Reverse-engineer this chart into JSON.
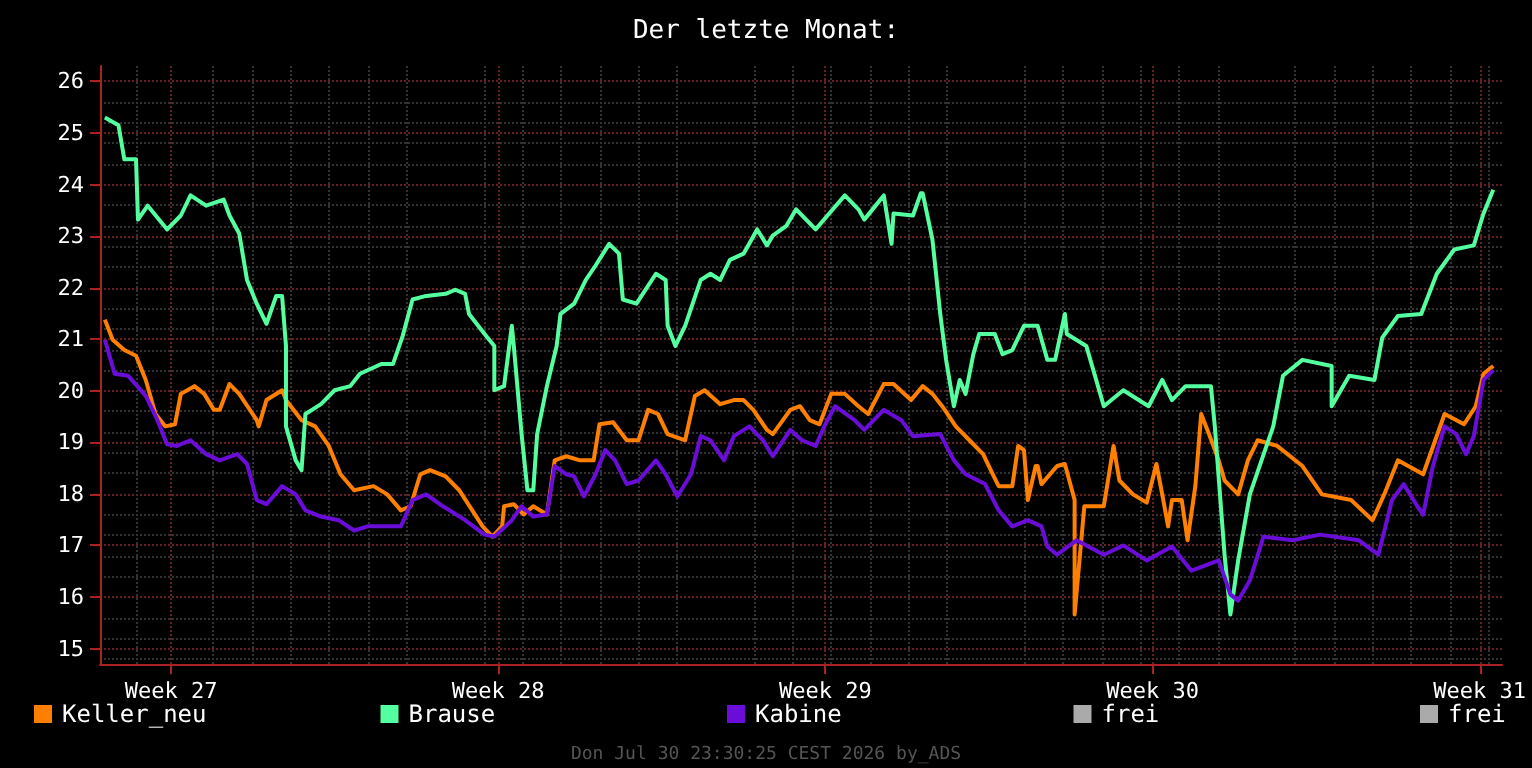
{
  "chart_data": {
    "type": "line",
    "title": "Der letzte Monat:",
    "xlim": [
      "2026-06-30T23:30",
      "2026-07-30T23:30"
    ],
    "xticks": [
      {
        "value": "2026-07-02T12:00",
        "label": "Week 27"
      },
      {
        "value": "2026-07-09T12:00",
        "label": "Week 28"
      },
      {
        "value": "2026-07-16T12:00",
        "label": "Week 29"
      },
      {
        "value": "2026-07-23T12:00",
        "label": "Week 30"
      },
      {
        "value": "2026-07-30T12:00",
        "label": "Week 31"
      }
    ],
    "ylim": [
      14.7,
      26.3
    ],
    "yticks": [
      15,
      16,
      17,
      18,
      19,
      20,
      21,
      22,
      23,
      24,
      25,
      26
    ],
    "grid": true,
    "legend": "bottom",
    "marker": "none",
    "annotations": [
      "Don Jul 30 23:30:25 CEST 2026 by_ADS"
    ],
    "series": [
      {
        "name": "Keller_neu",
        "color": "#ff7f00",
        "x": [
          "2026-07-01T02:00",
          "2026-07-01T06:00",
          "2026-07-01T12:00",
          "2026-07-01T18:00",
          "2026-07-01T23:00",
          "2026-07-02T04:00",
          "2026-07-02T09:00",
          "2026-07-02T14:00",
          "2026-07-02T17:00",
          "2026-07-03T00:00",
          "2026-07-03T05:00",
          "2026-07-03T10:00",
          "2026-07-03T13:00",
          "2026-07-03T18:00",
          "2026-07-03T23:00",
          "2026-07-04T08:00",
          "2026-07-04T09:00",
          "2026-07-04T13:00",
          "2026-07-04T21:00",
          "2026-07-04T23:00",
          "2026-07-05T07:00",
          "2026-07-05T14:00",
          "2026-07-05T21:00",
          "2026-07-06T03:00",
          "2026-07-06T10:00",
          "2026-07-06T20:00",
          "2026-07-07T03:00",
          "2026-07-07T10:00",
          "2026-07-07T15:00",
          "2026-07-07T20:00",
          "2026-07-08T01:00",
          "2026-07-08T09:00",
          "2026-07-08T16:00",
          "2026-07-09T04:00",
          "2026-07-09T09:00",
          "2026-07-09T14:00",
          "2026-07-09T15:00",
          "2026-07-09T20:00",
          "2026-07-10T01:00",
          "2026-07-10T06:00",
          "2026-07-10T13:00",
          "2026-07-10T17:00",
          "2026-07-10T23:00",
          "2026-07-11T06:00",
          "2026-07-11T13:00",
          "2026-07-11T16:00",
          "2026-07-11T23:00",
          "2026-07-12T06:00",
          "2026-07-12T12:00",
          "2026-07-12T17:00",
          "2026-07-12T22:00",
          "2026-07-13T03:00",
          "2026-07-13T12:00",
          "2026-07-13T17:00",
          "2026-07-13T22:00",
          "2026-07-14T06:00",
          "2026-07-14T13:00",
          "2026-07-14T18:00",
          "2026-07-14T23:00",
          "2026-07-15T06:00",
          "2026-07-15T09:00",
          "2026-07-15T18:00",
          "2026-07-15T23:00",
          "2026-07-16T04:00",
          "2026-07-16T09:00",
          "2026-07-16T15:00",
          "2026-07-16T22:00",
          "2026-07-17T05:00",
          "2026-07-17T10:00",
          "2026-07-17T18:00",
          "2026-07-17T23:00",
          "2026-07-18T08:00",
          "2026-07-18T14:00",
          "2026-07-18T19:00",
          "2026-07-19T00:00",
          "2026-07-19T07:00",
          "2026-07-19T14:00",
          "2026-07-19T21:00",
          "2026-07-20T02:00",
          "2026-07-20T05:00",
          "2026-07-20T12:00",
          "2026-07-20T15:00",
          "2026-07-20T18:00",
          "2026-07-20T20:00",
          "2026-07-21T00:00",
          "2026-07-21T01:00",
          "2026-07-21T03:00",
          "2026-07-21T11:00",
          "2026-07-21T15:00",
          "2026-07-21T20:00",
          "2026-07-21T20:00",
          "2026-07-22T01:00",
          "2026-07-22T11:00",
          "2026-07-22T16:00",
          "2026-07-22T19:00",
          "2026-07-23T02:00",
          "2026-07-23T09:00",
          "2026-07-23T14:00",
          "2026-07-23T17:00",
          "2026-07-23T20:00",
          "2026-07-23T22:00",
          "2026-07-24T03:00",
          "2026-07-24T06:00",
          "2026-07-24T10:00",
          "2026-07-24T13:00",
          "2026-07-24T17:00",
          "2026-07-24T22:00",
          "2026-07-25T01:00",
          "2026-07-25T08:00",
          "2026-07-25T13:00",
          "2026-07-25T18:00",
          "2026-07-26T04:00",
          "2026-07-26T17:00",
          "2026-07-27T03:00",
          "2026-07-27T18:00",
          "2026-07-28T05:00",
          "2026-07-28T11:00",
          "2026-07-28T18:00",
          "2026-07-29T07:00",
          "2026-07-29T18:00",
          "2026-07-30T04:00",
          "2026-07-30T10:00",
          "2026-07-30T14:00",
          "2026-07-30T19:00"
        ],
        "values": [
          21.38,
          20.99,
          20.79,
          20.68,
          20.21,
          19.55,
          19.31,
          19.35,
          19.94,
          20.09,
          19.94,
          19.63,
          19.63,
          20.13,
          19.94,
          19.43,
          19.31,
          19.82,
          20.01,
          19.82,
          19.43,
          19.31,
          18.93,
          18.38,
          18.07,
          18.15,
          17.99,
          17.68,
          17.76,
          18.38,
          18.46,
          18.34,
          18.07,
          17.37,
          17.17,
          17.37,
          17.76,
          17.8,
          17.6,
          17.76,
          17.6,
          18.65,
          18.73,
          18.65,
          18.65,
          19.35,
          19.39,
          19.04,
          19.04,
          19.63,
          19.55,
          19.16,
          19.04,
          19.9,
          20.01,
          19.74,
          19.82,
          19.82,
          19.63,
          19.24,
          19.16,
          19.63,
          19.7,
          19.43,
          19.35,
          19.94,
          19.94,
          19.7,
          19.55,
          20.13,
          20.13,
          19.82,
          20.09,
          19.94,
          19.7,
          19.31,
          19.04,
          18.77,
          18.38,
          18.15,
          18.15,
          18.93,
          18.85,
          17.88,
          18.54,
          18.54,
          18.19,
          18.54,
          18.58,
          17.88,
          15.66,
          17.76,
          17.76,
          18.93,
          18.26,
          17.99,
          17.83,
          18.58,
          17.99,
          17.37,
          17.88,
          17.88,
          17.1,
          18.15,
          19.55,
          19.16,
          18.65,
          18.26,
          17.99,
          18.65,
          19.04,
          18.93,
          18.54,
          17.99,
          17.88,
          17.49,
          17.99,
          18.65,
          18.38,
          19.55,
          19.35,
          19.7,
          20.33,
          20.48
        ]
      },
      {
        "name": "Brause",
        "color": "#54ff9f",
        "x": [
          "2026-07-01T02:00",
          "2026-07-01T09:00",
          "2026-07-01T12:00",
          "2026-07-01T18:00",
          "2026-07-01T19:00",
          "2026-07-02T00:00",
          "2026-07-02T10:00",
          "2026-07-02T17:00",
          "2026-07-02T22:00",
          "2026-07-03T06:00",
          "2026-07-03T15:00",
          "2026-07-03T18:00",
          "2026-07-03T23:00",
          "2026-07-04T03:00",
          "2026-07-04T08:00",
          "2026-07-04T13:00",
          "2026-07-04T18:00",
          "2026-07-04T21:00",
          "2026-07-04T23:00",
          "2026-07-04T23:00",
          "2026-07-05T04:00",
          "2026-07-05T07:00",
          "2026-07-05T09:00",
          "2026-07-05T17:00",
          "2026-07-06T00:00",
          "2026-07-06T08:00",
          "2026-07-06T13:00",
          "2026-07-07T00:00",
          "2026-07-07T06:00",
          "2026-07-07T11:00",
          "2026-07-07T16:00",
          "2026-07-07T23:00",
          "2026-07-08T09:00",
          "2026-07-08T14:00",
          "2026-07-08T19:00",
          "2026-07-08T21:00",
          "2026-07-09T05:00",
          "2026-07-09T10:00",
          "2026-07-09T10:00",
          "2026-07-09T15:00",
          "2026-07-09T19:00",
          "2026-07-09T20:00",
          "2026-07-10T00:00",
          "2026-07-10T03:00",
          "2026-07-10T06:00",
          "2026-07-10T08:00",
          "2026-07-10T13:00",
          "2026-07-10T18:00",
          "2026-07-10T20:00",
          "2026-07-11T03:00",
          "2026-07-11T09:00",
          "2026-07-11T14:00",
          "2026-07-11T21:00",
          "2026-07-12T02:00",
          "2026-07-12T04:00",
          "2026-07-12T11:00",
          "2026-07-12T21:00",
          "2026-07-13T02:00",
          "2026-07-13T03:00",
          "2026-07-13T07:00",
          "2026-07-13T12:00",
          "2026-07-13T20:00",
          "2026-07-14T01:00",
          "2026-07-14T06:00",
          "2026-07-14T11:00",
          "2026-07-14T18:00",
          "2026-07-15T01:00",
          "2026-07-15T06:00",
          "2026-07-15T09:00",
          "2026-07-15T16:00",
          "2026-07-15T21:00",
          "2026-07-16T07:00",
          "2026-07-16T14:00",
          "2026-07-16T22:00",
          "2026-07-17T05:00",
          "2026-07-17T08:00",
          "2026-07-17T18:00",
          "2026-07-17T22:00",
          "2026-07-17T23:00",
          "2026-07-18T09:00",
          "2026-07-18T13:00",
          "2026-07-18T14:00",
          "2026-07-18T19:00",
          "2026-07-18T23:00",
          "2026-07-19T02:00",
          "2026-07-19T06:00",
          "2026-07-19T09:00",
          "2026-07-19T12:00",
          "2026-07-19T16:00",
          "2026-07-19T19:00",
          "2026-07-20T03:00",
          "2026-07-20T07:00",
          "2026-07-20T12:00",
          "2026-07-20T18:00",
          "2026-07-21T01:00",
          "2026-07-21T06:00",
          "2026-07-21T10:00",
          "2026-07-21T15:00",
          "2026-07-21T16:00",
          "2026-07-22T02:00",
          "2026-07-22T11:00",
          "2026-07-22T21:00",
          "2026-07-23T10:00",
          "2026-07-23T17:00",
          "2026-07-23T22:00",
          "2026-07-24T05:00",
          "2026-07-24T18:00",
          "2026-07-24T20:00",
          "2026-07-25T01:00",
          "2026-07-25T04:00",
          "2026-07-25T08:00",
          "2026-07-25T14:00",
          "2026-07-26T02:00",
          "2026-07-26T07:00",
          "2026-07-26T17:00",
          "2026-07-27T08:00",
          "2026-07-27T08:00",
          "2026-07-27T17:00",
          "2026-07-28T06:00",
          "2026-07-28T10:00",
          "2026-07-28T18:00",
          "2026-07-29T06:00",
          "2026-07-29T14:00",
          "2026-07-29T23:00",
          "2026-07-30T09:00",
          "2026-07-30T14:00",
          "2026-07-30T19:00"
        ],
        "values": [
          25.3,
          25.15,
          24.49,
          24.49,
          23.32,
          23.59,
          23.13,
          23.4,
          23.79,
          23.59,
          23.71,
          23.4,
          23.05,
          22.15,
          21.69,
          21.3,
          21.84,
          21.84,
          20.87,
          19.31,
          18.65,
          18.46,
          19.55,
          19.74,
          20.01,
          20.09,
          20.33,
          20.52,
          20.52,
          21.07,
          21.77,
          21.84,
          21.88,
          21.96,
          21.88,
          21.49,
          21.1,
          20.87,
          20.01,
          20.09,
          21.26,
          20.87,
          19.16,
          18.07,
          18.07,
          19.16,
          20.09,
          20.87,
          21.49,
          21.69,
          22.15,
          22.43,
          22.85,
          22.66,
          21.77,
          21.69,
          22.27,
          22.15,
          21.26,
          20.87,
          21.26,
          22.15,
          22.27,
          22.15,
          22.54,
          22.66,
          23.13,
          22.82,
          23.01,
          23.2,
          23.52,
          23.13,
          23.44,
          23.79,
          23.52,
          23.32,
          23.79,
          22.85,
          23.44,
          23.4,
          23.83,
          23.83,
          22.93,
          21.49,
          20.6,
          19.7,
          20.21,
          19.94,
          20.71,
          21.1,
          21.1,
          20.71,
          20.79,
          21.26,
          21.26,
          20.6,
          20.6,
          21.49,
          21.1,
          20.87,
          19.7,
          20.01,
          19.7,
          20.21,
          19.82,
          20.09,
          20.09,
          19.31,
          16.82,
          15.66,
          16.71,
          17.99,
          19.31,
          20.29,
          20.6,
          20.48,
          19.7,
          20.29,
          20.21,
          21.03,
          21.45,
          21.49,
          22.27,
          22.74,
          22.82,
          23.44,
          23.9
        ]
      },
      {
        "name": "Kabine",
        "color": "#6a0dd8",
        "x": [
          "2026-07-01T02:00",
          "2026-07-01T07:00",
          "2026-07-01T14:00",
          "2026-07-01T23:00",
          "2026-07-02T05:00",
          "2026-07-02T10:00",
          "2026-07-02T15:00",
          "2026-07-02T22:00",
          "2026-07-03T06:00",
          "2026-07-03T13:00",
          "2026-07-03T22:00",
          "2026-07-04T03:00",
          "2026-07-04T08:00",
          "2026-07-04T13:00",
          "2026-07-04T21:00",
          "2026-07-05T04:00",
          "2026-07-05T09:00",
          "2026-07-05T17:00",
          "2026-07-06T02:00",
          "2026-07-06T10:00",
          "2026-07-06T17:00",
          "2026-07-07T00:00",
          "2026-07-07T10:00",
          "2026-07-07T16:00",
          "2026-07-07T23:00",
          "2026-07-08T06:00",
          "2026-07-08T19:00",
          "2026-07-09T05:00",
          "2026-07-09T10:00",
          "2026-07-09T19:00",
          "2026-07-10T00:00",
          "2026-07-10T06:00",
          "2026-07-10T13:00",
          "2026-07-10T17:00",
          "2026-07-10T23:00",
          "2026-07-11T03:00",
          "2026-07-11T08:00",
          "2026-07-11T14:00",
          "2026-07-11T19:00",
          "2026-07-12T00:00",
          "2026-07-12T06:00",
          "2026-07-12T12:00",
          "2026-07-12T21:00",
          "2026-07-13T02:00",
          "2026-07-13T08:00",
          "2026-07-13T15:00",
          "2026-07-13T20:00",
          "2026-07-14T01:00",
          "2026-07-14T08:00",
          "2026-07-14T13:00",
          "2026-07-14T21:00",
          "2026-07-15T04:00",
          "2026-07-15T09:00",
          "2026-07-15T18:00",
          "2026-07-16T00:00",
          "2026-07-16T07:00",
          "2026-07-16T12:00",
          "2026-07-16T17:00",
          "2026-07-17T03:00",
          "2026-07-17T08:00",
          "2026-07-17T18:00",
          "2026-07-18T03:00",
          "2026-07-18T09:00",
          "2026-07-18T23:00",
          "2026-07-19T06:00",
          "2026-07-19T12:00",
          "2026-07-19T22:00",
          "2026-07-20T05:00",
          "2026-07-20T12:00",
          "2026-07-20T20:00",
          "2026-07-21T03:00",
          "2026-07-21T06:00",
          "2026-07-21T11:00",
          "2026-07-21T21:00",
          "2026-07-22T11:00",
          "2026-07-22T21:00",
          "2026-07-23T09:00",
          "2026-07-23T22:00",
          "2026-07-24T08:00",
          "2026-07-24T22:00",
          "2026-07-25T04:00",
          "2026-07-25T08:00",
          "2026-07-25T14:00",
          "2026-07-25T21:00",
          "2026-07-26T12:00",
          "2026-07-27T02:00",
          "2026-07-27T22:00",
          "2026-07-28T08:00",
          "2026-07-28T15:00",
          "2026-07-28T21:00",
          "2026-07-29T04:00",
          "2026-07-29T07:00",
          "2026-07-29T12:00",
          "2026-07-29T18:00",
          "2026-07-30T00:00",
          "2026-07-30T05:00",
          "2026-07-30T09:00",
          "2026-07-30T14:00",
          "2026-07-30T19:00"
        ],
        "values": [
          20.99,
          20.33,
          20.29,
          19.9,
          19.43,
          18.96,
          18.93,
          19.04,
          18.77,
          18.65,
          18.77,
          18.58,
          17.88,
          17.8,
          18.15,
          17.99,
          17.68,
          17.56,
          17.49,
          17.29,
          17.37,
          17.37,
          17.37,
          17.88,
          17.99,
          17.8,
          17.49,
          17.21,
          17.17,
          17.49,
          17.76,
          17.56,
          17.6,
          18.54,
          18.38,
          18.34,
          17.95,
          18.38,
          18.85,
          18.65,
          18.19,
          18.26,
          18.65,
          18.38,
          17.95,
          18.38,
          19.12,
          19.04,
          18.65,
          19.12,
          19.31,
          19.04,
          18.73,
          19.24,
          19.04,
          18.93,
          19.35,
          19.7,
          19.43,
          19.24,
          19.63,
          19.43,
          19.12,
          19.16,
          18.65,
          18.38,
          18.19,
          17.68,
          17.37,
          17.49,
          17.37,
          16.98,
          16.82,
          17.1,
          16.82,
          17.0,
          16.71,
          16.98,
          16.51,
          16.71,
          16.05,
          15.93,
          16.32,
          17.17,
          17.1,
          17.21,
          17.1,
          16.82,
          17.88,
          18.19,
          17.76,
          17.6,
          18.54,
          19.31,
          19.16,
          18.77,
          19.12,
          20.21,
          20.4
        ]
      },
      {
        "name": "frei",
        "color": "#aaaaaa"
      },
      {
        "name": "frei",
        "color": "#aaaaaa"
      }
    ]
  }
}
